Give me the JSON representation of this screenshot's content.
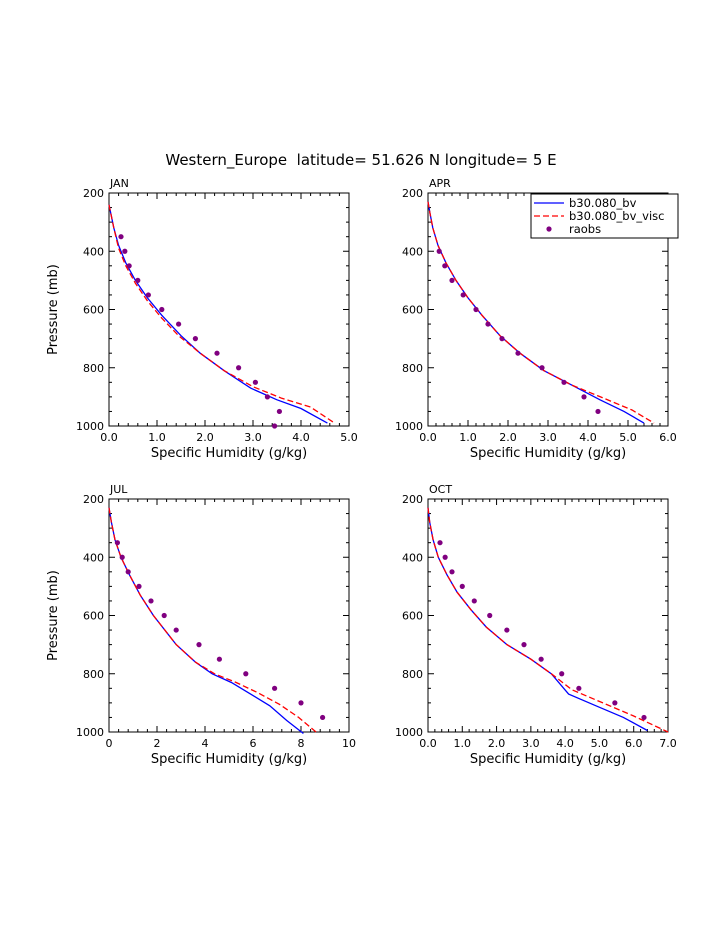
{
  "figure": {
    "title": "Western_Europe  latitude= 51.626 N longitude= 5 E"
  },
  "colors": {
    "model_bv": "#0000ff",
    "model_bv_visc": "#ff0000",
    "raobs": "#800080",
    "axes": "#000000"
  },
  "legend": {
    "placement": "top-right of APR panel",
    "entries": [
      {
        "label": "b30.080_bv",
        "style": "solid-line",
        "color": "#0000ff"
      },
      {
        "label": "b30.080_bv_visc",
        "style": "dashed-line",
        "color": "#ff0000"
      },
      {
        "label": "raobs",
        "style": "dot",
        "color": "#800080"
      }
    ]
  },
  "chart_data": [
    {
      "type": "line",
      "panel": "JAN",
      "xlabel": "Specific Humidity (g/kg)",
      "ylabel": "Pressure (mb)",
      "xlim": [
        0.0,
        5.0
      ],
      "ylim": [
        200,
        1000
      ],
      "y_inverted": true,
      "xticks": [
        "0.0",
        "1.0",
        "2.0",
        "3.0",
        "4.0",
        "5.0"
      ],
      "yticks": [
        "200",
        "400",
        "600",
        "800",
        "1000"
      ],
      "grid": false,
      "series": [
        {
          "name": "b30.080_bv",
          "style": "solid",
          "x": [
            0.0,
            0.05,
            0.1,
            0.2,
            0.35,
            0.55,
            0.8,
            1.1,
            1.5,
            1.9,
            2.4,
            2.95,
            3.5,
            4.0,
            4.55
          ],
          "y": [
            240,
            280,
            320,
            380,
            440,
            500,
            560,
            620,
            690,
            750,
            810,
            870,
            910,
            940,
            990
          ]
        },
        {
          "name": "b30.080_bv_visc",
          "style": "dashed",
          "x": [
            0.0,
            0.05,
            0.1,
            0.2,
            0.35,
            0.55,
            0.8,
            1.1,
            1.45,
            1.9,
            2.4,
            3.0,
            3.6,
            4.2,
            4.7
          ],
          "y": [
            240,
            280,
            320,
            390,
            450,
            510,
            570,
            630,
            690,
            750,
            810,
            865,
            905,
            935,
            990
          ]
        },
        {
          "name": "raobs",
          "style": "dots",
          "x": [
            0.25,
            0.33,
            0.42,
            0.6,
            0.82,
            1.1,
            1.45,
            1.8,
            2.25,
            2.7,
            3.05,
            3.3,
            3.55,
            3.45
          ],
          "y": [
            350,
            400,
            450,
            500,
            550,
            600,
            650,
            700,
            750,
            800,
            850,
            900,
            950,
            1000
          ]
        }
      ]
    },
    {
      "type": "line",
      "panel": "APR",
      "xlabel": "Specific Humidity (g/kg)",
      "ylabel": "",
      "xlim": [
        0.0,
        6.0
      ],
      "ylim": [
        200,
        1000
      ],
      "y_inverted": true,
      "xticks": [
        "0.0",
        "1.0",
        "2.0",
        "3.0",
        "4.0",
        "5.0",
        "6.0"
      ],
      "yticks": [
        "200",
        "400",
        "600",
        "800",
        "1000"
      ],
      "grid": false,
      "series": [
        {
          "name": "b30.080_bv",
          "style": "solid",
          "x": [
            0.0,
            0.05,
            0.12,
            0.25,
            0.45,
            0.7,
            1.0,
            1.35,
            1.8,
            2.3,
            2.9,
            3.6,
            4.3,
            4.9,
            5.4
          ],
          "y": [
            230,
            270,
            320,
            380,
            440,
            500,
            560,
            620,
            690,
            750,
            810,
            860,
            910,
            950,
            990
          ]
        },
        {
          "name": "b30.080_bv_visc",
          "style": "dashed",
          "x": [
            0.0,
            0.05,
            0.12,
            0.25,
            0.45,
            0.7,
            1.0,
            1.35,
            1.8,
            2.3,
            2.9,
            3.6,
            4.4,
            5.1,
            5.65
          ],
          "y": [
            230,
            270,
            320,
            380,
            440,
            500,
            560,
            620,
            690,
            750,
            810,
            860,
            905,
            945,
            990
          ]
        },
        {
          "name": "raobs",
          "style": "dots",
          "x": [
            0.28,
            0.42,
            0.6,
            0.88,
            1.2,
            1.5,
            1.85,
            2.25,
            2.85,
            3.4,
            3.9,
            4.25
          ],
          "y": [
            400,
            450,
            500,
            550,
            600,
            650,
            700,
            750,
            800,
            850,
            900,
            950
          ]
        }
      ]
    },
    {
      "type": "line",
      "panel": "JUL",
      "xlabel": "Specific Humidity (g/kg)",
      "ylabel": "Pressure (mb)",
      "xlim": [
        0,
        10
      ],
      "ylim": [
        200,
        1000
      ],
      "y_inverted": true,
      "xticks": [
        "0",
        "2",
        "4",
        "6",
        "8",
        "10"
      ],
      "yticks": [
        "200",
        "400",
        "600",
        "800",
        "1000"
      ],
      "grid": false,
      "series": [
        {
          "name": "b30.080_bv",
          "style": "solid",
          "x": [
            0.0,
            0.1,
            0.25,
            0.5,
            0.85,
            1.3,
            1.85,
            2.8,
            3.6,
            4.3,
            5.1,
            5.9,
            6.7,
            7.4,
            8.1
          ],
          "y": [
            230,
            280,
            340,
            400,
            460,
            530,
            600,
            700,
            760,
            800,
            830,
            870,
            910,
            960,
            1005
          ]
        },
        {
          "name": "b30.080_bv_visc",
          "style": "dashed",
          "x": [
            0.0,
            0.1,
            0.25,
            0.5,
            0.85,
            1.3,
            1.85,
            2.8,
            3.6,
            4.4,
            5.3,
            6.2,
            7.1,
            7.9,
            8.7
          ],
          "y": [
            230,
            280,
            340,
            400,
            460,
            530,
            600,
            700,
            760,
            800,
            830,
            865,
            905,
            950,
            1005
          ]
        },
        {
          "name": "raobs",
          "style": "dots",
          "x": [
            0.35,
            0.55,
            0.8,
            1.25,
            1.75,
            2.3,
            2.8,
            3.75,
            4.6,
            5.7,
            6.9,
            8.0,
            8.9
          ],
          "y": [
            350,
            400,
            450,
            500,
            550,
            600,
            650,
            700,
            750,
            800,
            850,
            900,
            950
          ]
        }
      ]
    },
    {
      "type": "line",
      "panel": "OCT",
      "xlabel": "Specific Humidity (g/kg)",
      "ylabel": "",
      "xlim": [
        0.0,
        7.0
      ],
      "ylim": [
        200,
        1000
      ],
      "y_inverted": true,
      "xticks": [
        "0.0",
        "1.0",
        "2.0",
        "3.0",
        "4.0",
        "5.0",
        "6.0",
        "7.0"
      ],
      "yticks": [
        "200",
        "400",
        "600",
        "800",
        "1000"
      ],
      "grid": false,
      "series": [
        {
          "name": "b30.080_bv",
          "style": "solid",
          "x": [
            0.0,
            0.05,
            0.15,
            0.3,
            0.55,
            0.85,
            1.25,
            1.7,
            2.3,
            3.0,
            3.6,
            4.1,
            4.9,
            5.7,
            6.4
          ],
          "y": [
            230,
            280,
            340,
            400,
            460,
            520,
            580,
            640,
            700,
            750,
            800,
            870,
            910,
            950,
            995
          ]
        },
        {
          "name": "b30.080_bv_visc",
          "style": "dashed",
          "x": [
            0.0,
            0.05,
            0.15,
            0.3,
            0.55,
            0.85,
            1.25,
            1.7,
            2.3,
            3.0,
            3.6,
            4.2,
            5.1,
            6.0,
            7.0
          ],
          "y": [
            230,
            280,
            340,
            400,
            460,
            520,
            580,
            640,
            700,
            750,
            800,
            855,
            900,
            945,
            1000
          ]
        },
        {
          "name": "raobs",
          "style": "dots",
          "x": [
            0.35,
            0.5,
            0.7,
            1.0,
            1.35,
            1.8,
            2.3,
            2.8,
            3.3,
            3.9,
            4.4,
            5.45,
            6.3
          ],
          "y": [
            350,
            400,
            450,
            500,
            550,
            600,
            650,
            700,
            750,
            800,
            850,
            900,
            950
          ]
        }
      ]
    }
  ]
}
